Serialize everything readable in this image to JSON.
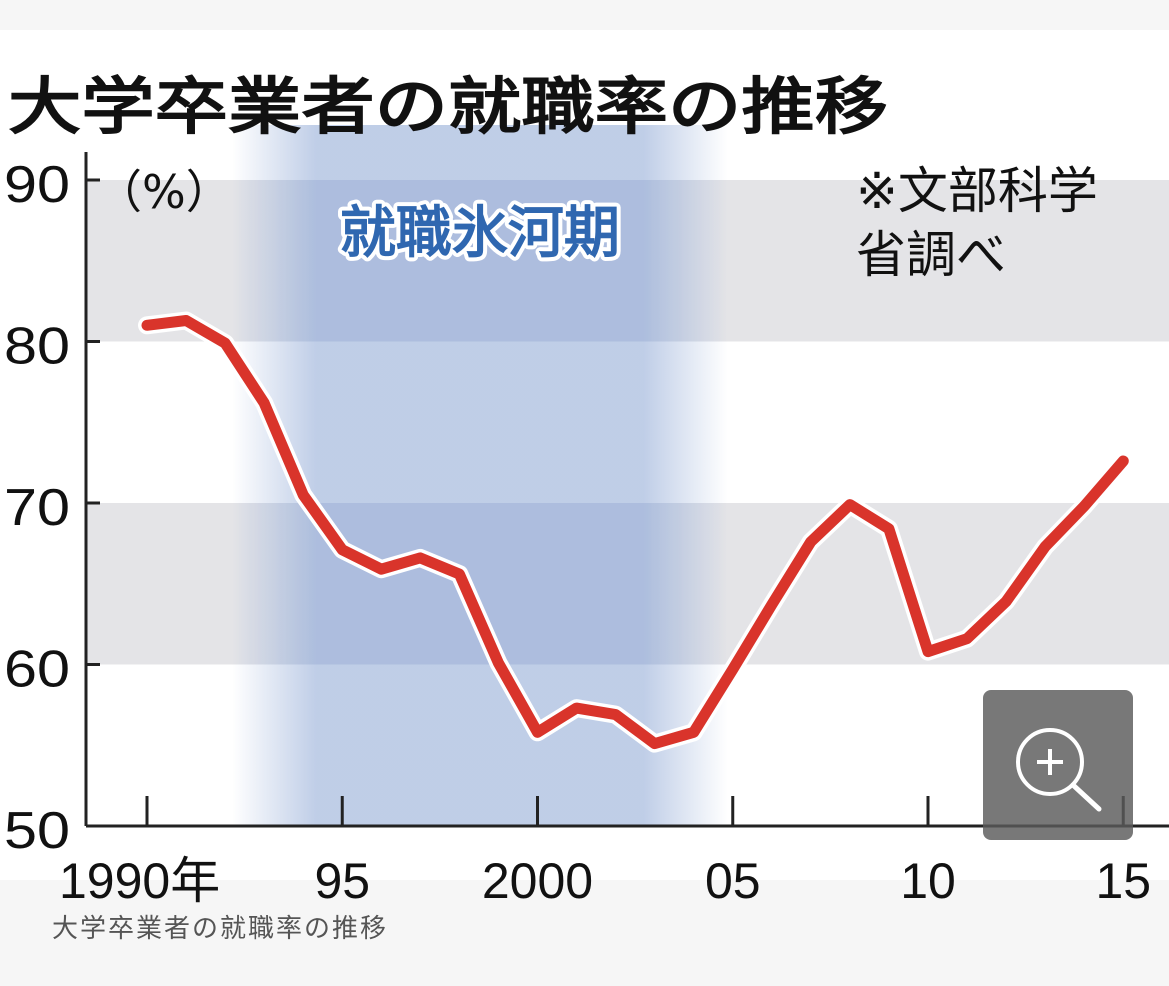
{
  "chart_data": {
    "type": "line",
    "title": "大学卒業者の就職率の推移",
    "y_unit_label": "（%）",
    "source_note": [
      "※文部科学",
      "省調べ"
    ],
    "shaded_period": {
      "label": "就職氷河期",
      "x_start": 1993,
      "x_end": 2004
    },
    "ylim": [
      50,
      90
    ],
    "yticks": [
      "50",
      "60",
      "70",
      "80",
      "90"
    ],
    "xticks": [
      {
        "x": 1990,
        "label": "1990年"
      },
      {
        "x": 1995,
        "label": "95"
      },
      {
        "x": 2000,
        "label": "2000"
      },
      {
        "x": 2005,
        "label": "05"
      },
      {
        "x": 2010,
        "label": "10"
      },
      {
        "x": 2015,
        "label": "15"
      }
    ],
    "series": [
      {
        "x": [
          1990,
          1991,
          1992,
          1993,
          1994,
          1995,
          1996,
          1997,
          1998,
          1999,
          2000,
          2001,
          2002,
          2003,
          2004,
          2005,
          2006,
          2007,
          2008,
          2009,
          2010,
          2011,
          2012,
          2013,
          2014,
          2015
        ],
        "values": [
          81.0,
          81.3,
          79.9,
          76.2,
          70.5,
          67.1,
          65.9,
          66.6,
          65.6,
          60.1,
          55.8,
          57.3,
          56.9,
          55.1,
          55.8,
          59.7,
          63.7,
          67.6,
          69.9,
          68.4,
          60.8,
          61.6,
          63.9,
          67.3,
          69.8,
          72.6
        ]
      }
    ],
    "colors": {
      "line": "#d9342b",
      "band": "#e4e4e7",
      "shade": "#bccbe6",
      "period_label": "#2f67b0"
    }
  },
  "caption": "大学卒業者の就職率の推移",
  "zoom_icon": "zoom-in-icon"
}
